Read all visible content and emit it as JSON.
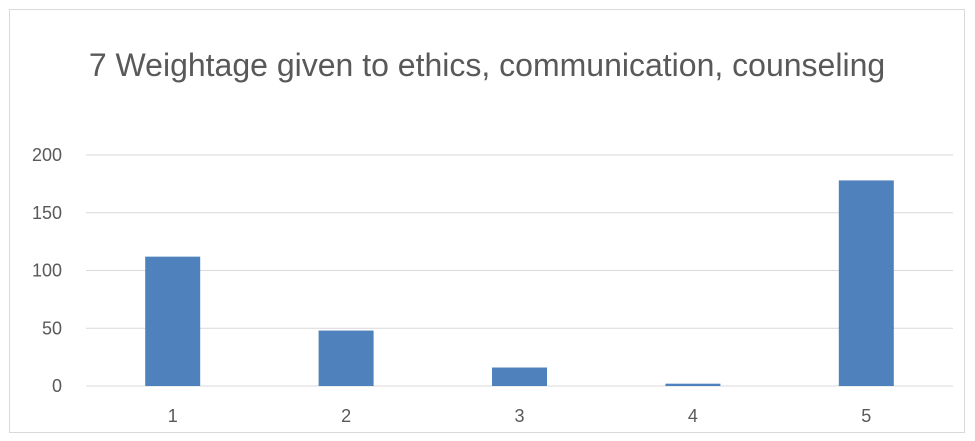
{
  "chart_data": {
    "type": "bar",
    "title": "7 Weightage given to ethics, communication, counseling",
    "categories": [
      "1",
      "2",
      "3",
      "4",
      "5"
    ],
    "values": [
      112,
      48,
      16,
      2,
      178
    ],
    "xlabel": "",
    "ylabel": "",
    "ylim": [
      0,
      200
    ],
    "yticks": [
      0,
      50,
      100,
      150,
      200
    ],
    "grid": true,
    "legend": "none",
    "bar_color": "#4f81bd",
    "grid_color": "#d9d9d9",
    "text_color": "#595959"
  }
}
